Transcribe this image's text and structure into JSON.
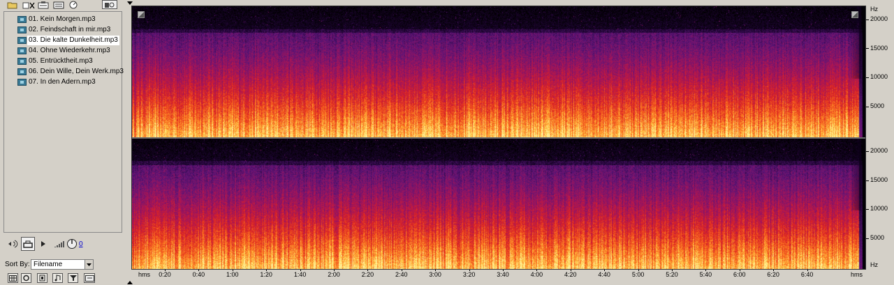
{
  "file_list": {
    "items": [
      "01. Kein Morgen.mp3",
      "02. Feindschaft in mir.mp3",
      "03. Die kalte Dunkelheit.mp3",
      "04. Ohne Wiederkehr.mp3",
      "05. Entrücktheit.mp3",
      "06. Dein Wille, Dein Werk.mp3",
      "07. In den Adern.mp3"
    ],
    "selected_index": 2
  },
  "transport": {
    "volume_value": "0"
  },
  "sort": {
    "label": "Sort By:",
    "value": "Filename"
  },
  "spectral": {
    "freq_unit": "Hz",
    "freq_labels": [
      "20000",
      "15000",
      "10000",
      "5000"
    ],
    "time_unit": "hms",
    "time_labels": [
      "0:20",
      "0:40",
      "1:00",
      "1:20",
      "1:40",
      "2:00",
      "2:20",
      "2:40",
      "3:00",
      "3:20",
      "3:40",
      "4:00",
      "4:20",
      "4:40",
      "5:00",
      "5:20",
      "5:40",
      "6:00",
      "6:20",
      "6:40"
    ]
  },
  "icons": {
    "toolbar": [
      "open-folder-icon",
      "close-file-icon",
      "insert-icon",
      "properties-icon",
      "autoplay-icon",
      "favorites-icon"
    ],
    "transport": [
      "loop-icon",
      "export-icon",
      "play-icon",
      "volume-meter-icon",
      "volume-knob-icon"
    ],
    "bottom": [
      "grid-icon",
      "loop-icon",
      "pause-icon",
      "music-icon",
      "filter-icon",
      "show-icon"
    ]
  },
  "colors": {
    "panel_bg": "#d4d0c8",
    "selection_bg": "#ffffff",
    "link_blue": "#0000cc"
  }
}
